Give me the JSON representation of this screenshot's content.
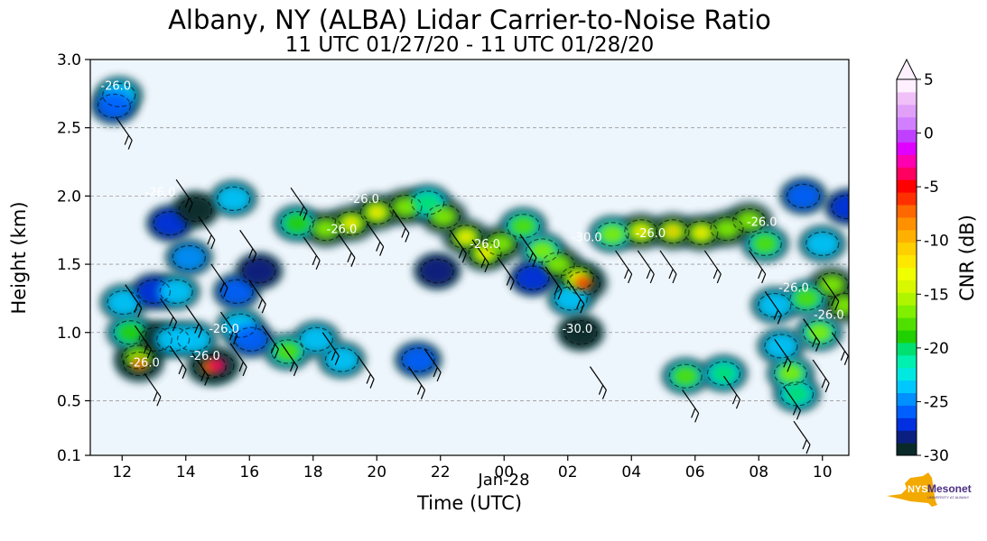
{
  "chart_data": {
    "type": "heatmap",
    "title": "Albany, NY (ALBA) Lidar Carrier-to-Noise Ratio",
    "subtitle": "11 UTC 01/27/20 - 11 UTC 01/28/20",
    "xlabel": "Time (UTC)",
    "ylabel": "Height (km)",
    "xlim": [
      "2020-01-27 11:00",
      "2020-01-28 10:50"
    ],
    "ylim": [
      0.1,
      3.0
    ],
    "x_ticks": [
      "12",
      "14",
      "16",
      "18",
      "20",
      "22",
      "00",
      "02",
      "04",
      "06",
      "08",
      "10"
    ],
    "x_tick_hours": [
      12,
      14,
      16,
      18,
      20,
      22,
      24,
      26,
      28,
      30,
      32,
      34
    ],
    "date_label": "Jan-28",
    "y_ticks": [
      "0.1",
      "0.5",
      "1.0",
      "1.5",
      "2.0",
      "2.5",
      "3.0"
    ],
    "y_tick_values": [
      0.1,
      0.5,
      1.0,
      1.5,
      2.0,
      2.5,
      3.0
    ],
    "grid": "horizontal-dashed",
    "background_color": "#eef6fd",
    "colorbar": {
      "label": "CNR (dB)",
      "min": -30,
      "max": 5,
      "tick_labels": [
        "5",
        "0",
        "-5",
        "-10",
        "-15",
        "-20",
        "-25",
        "-30"
      ],
      "tick_values": [
        5,
        0,
        -5,
        -10,
        -15,
        -20,
        -25,
        -30
      ],
      "extend": "max",
      "colors": [
        "#0a2a2a",
        "#0a1f80",
        "#0030e0",
        "#0060ff",
        "#0090ff",
        "#00c8ff",
        "#00e8e0",
        "#00f0b0",
        "#00e070",
        "#20d000",
        "#50e000",
        "#80ef00",
        "#b0f500",
        "#d8f800",
        "#f0ff00",
        "#ffe800",
        "#ffd000",
        "#ffb000",
        "#ff9000",
        "#ff6800",
        "#ff3000",
        "#ff0000",
        "#ff0060",
        "#ff00b0",
        "#e000ff",
        "#c040ff",
        "#d080ff",
        "#e0a0f8",
        "#f0c0f8",
        "#fff0ff"
      ]
    },
    "contour_labels": [
      "-26.0",
      "-26.0",
      "-26.0",
      "-26.0",
      "-26.0",
      "-26.0",
      "-30.0",
      "-26.0",
      "-26.0",
      "-30.0",
      "-26.0",
      "-26.0",
      "-26.0",
      "-26.0"
    ],
    "features": [
      {
        "t": 11.9,
        "z": 2.74,
        "cnr": -22
      },
      {
        "t": 11.75,
        "z": 2.66,
        "cnr": -26
      },
      {
        "t": 12.05,
        "z": 1.22,
        "cnr": -24
      },
      {
        "t": 12.25,
        "z": 1.0,
        "cnr": -19
      },
      {
        "t": 12.5,
        "z": 0.82,
        "cnr": -13
      },
      {
        "t": 12.55,
        "z": 0.77,
        "cnr": -7
      },
      {
        "t": 13.0,
        "z": 1.3,
        "cnr": -27
      },
      {
        "t": 13.05,
        "z": 0.95,
        "cnr": -29
      },
      {
        "t": 13.5,
        "z": 1.8,
        "cnr": -27
      },
      {
        "t": 13.7,
        "z": 1.3,
        "cnr": -24
      },
      {
        "t": 13.6,
        "z": 0.95,
        "cnr": -22
      },
      {
        "t": 14.1,
        "z": 1.55,
        "cnr": -25
      },
      {
        "t": 14.25,
        "z": 0.95,
        "cnr": -22
      },
      {
        "t": 14.75,
        "z": 0.75,
        "cnr": -7
      },
      {
        "t": 15.0,
        "z": 0.76,
        "cnr": -4
      },
      {
        "t": 14.3,
        "z": 1.9,
        "cnr": -29
      },
      {
        "t": 15.6,
        "z": 1.3,
        "cnr": -26
      },
      {
        "t": 15.7,
        "z": 1.05,
        "cnr": -22
      },
      {
        "t": 16.05,
        "z": 0.95,
        "cnr": -26
      },
      {
        "t": 16.3,
        "z": 1.45,
        "cnr": -28
      },
      {
        "t": 15.5,
        "z": 1.98,
        "cnr": -22
      },
      {
        "t": 17.2,
        "z": 0.86,
        "cnr": -18
      },
      {
        "t": 18.1,
        "z": 0.95,
        "cnr": -22
      },
      {
        "t": 18.9,
        "z": 0.8,
        "cnr": -24
      },
      {
        "t": 17.5,
        "z": 1.8,
        "cnr": -19
      },
      {
        "t": 18.4,
        "z": 1.76,
        "cnr": -14
      },
      {
        "t": 19.2,
        "z": 1.8,
        "cnr": -12
      },
      {
        "t": 20.0,
        "z": 1.88,
        "cnr": -12
      },
      {
        "t": 20.9,
        "z": 1.92,
        "cnr": -14
      },
      {
        "t": 21.6,
        "z": 1.95,
        "cnr": -20
      },
      {
        "t": 22.1,
        "z": 1.85,
        "cnr": -14
      },
      {
        "t": 22.8,
        "z": 1.7,
        "cnr": -12
      },
      {
        "t": 23.4,
        "z": 1.58,
        "cnr": -12
      },
      {
        "t": 23.9,
        "z": 1.65,
        "cnr": -14
      },
      {
        "t": 24.6,
        "z": 1.78,
        "cnr": -18
      },
      {
        "t": 25.2,
        "z": 1.6,
        "cnr": -16
      },
      {
        "t": 25.7,
        "z": 1.5,
        "cnr": -14
      },
      {
        "t": 26.3,
        "z": 1.4,
        "cnr": -12
      },
      {
        "t": 26.5,
        "z": 1.36,
        "cnr": -6
      },
      {
        "t": 26.4,
        "z": 1.0,
        "cnr": -29
      },
      {
        "t": 26.1,
        "z": 1.25,
        "cnr": -24
      },
      {
        "t": 21.3,
        "z": 0.8,
        "cnr": -26
      },
      {
        "t": 24.9,
        "z": 1.4,
        "cnr": -27
      },
      {
        "t": 21.9,
        "z": 1.45,
        "cnr": -28
      },
      {
        "t": 27.4,
        "z": 1.72,
        "cnr": -16
      },
      {
        "t": 28.3,
        "z": 1.74,
        "cnr": -12
      },
      {
        "t": 29.3,
        "z": 1.74,
        "cnr": -11
      },
      {
        "t": 30.2,
        "z": 1.73,
        "cnr": -12
      },
      {
        "t": 31.0,
        "z": 1.76,
        "cnr": -14
      },
      {
        "t": 31.7,
        "z": 1.82,
        "cnr": -14
      },
      {
        "t": 32.2,
        "z": 1.65,
        "cnr": -18
      },
      {
        "t": 32.5,
        "z": 1.2,
        "cnr": -24
      },
      {
        "t": 32.7,
        "z": 0.9,
        "cnr": -22
      },
      {
        "t": 33.0,
        "z": 0.7,
        "cnr": -16
      },
      {
        "t": 33.2,
        "z": 0.55,
        "cnr": -20
      },
      {
        "t": 33.5,
        "z": 1.25,
        "cnr": -18
      },
      {
        "t": 33.9,
        "z": 1.0,
        "cnr": -16
      },
      {
        "t": 34.3,
        "z": 1.35,
        "cnr": -14
      },
      {
        "t": 34.7,
        "z": 1.2,
        "cnr": -13
      },
      {
        "t": 33.4,
        "z": 2.0,
        "cnr": -26
      },
      {
        "t": 34.0,
        "z": 1.65,
        "cnr": -24
      },
      {
        "t": 29.7,
        "z": 0.68,
        "cnr": -18
      },
      {
        "t": 30.9,
        "z": 0.7,
        "cnr": -20
      },
      {
        "t": 34.8,
        "z": 1.92,
        "cnr": -27
      }
    ],
    "wind_barbs": [
      {
        "t": 11.8,
        "z": 2.58
      },
      {
        "t": 12.1,
        "z": 1.35
      },
      {
        "t": 12.4,
        "z": 1.05
      },
      {
        "t": 12.7,
        "z": 0.7
      },
      {
        "t": 13.2,
        "z": 1.25
      },
      {
        "t": 13.5,
        "z": 0.9
      },
      {
        "t": 13.7,
        "z": 2.12
      },
      {
        "t": 14.0,
        "z": 1.2
      },
      {
        "t": 14.2,
        "z": 0.85
      },
      {
        "t": 14.4,
        "z": 1.85
      },
      {
        "t": 14.8,
        "z": 1.5
      },
      {
        "t": 15.1,
        "z": 1.15
      },
      {
        "t": 15.4,
        "z": 0.92
      },
      {
        "t": 15.7,
        "z": 1.75
      },
      {
        "t": 16.0,
        "z": 1.38
      },
      {
        "t": 16.4,
        "z": 1.05
      },
      {
        "t": 17.0,
        "z": 0.92
      },
      {
        "t": 17.3,
        "z": 2.06
      },
      {
        "t": 17.7,
        "z": 1.7
      },
      {
        "t": 18.3,
        "z": 1.0
      },
      {
        "t": 18.8,
        "z": 1.72
      },
      {
        "t": 19.4,
        "z": 0.83
      },
      {
        "t": 19.7,
        "z": 1.8
      },
      {
        "t": 20.5,
        "z": 1.9
      },
      {
        "t": 21.0,
        "z": 0.75
      },
      {
        "t": 21.5,
        "z": 0.88
      },
      {
        "t": 22.3,
        "z": 1.75
      },
      {
        "t": 23.0,
        "z": 1.68
      },
      {
        "t": 23.8,
        "z": 1.55
      },
      {
        "t": 24.5,
        "z": 1.72
      },
      {
        "t": 25.3,
        "z": 1.48
      },
      {
        "t": 26.0,
        "z": 1.38
      },
      {
        "t": 26.7,
        "z": 0.75
      },
      {
        "t": 27.5,
        "z": 1.6
      },
      {
        "t": 28.2,
        "z": 1.6
      },
      {
        "t": 28.9,
        "z": 1.6
      },
      {
        "t": 29.6,
        "z": 0.58
      },
      {
        "t": 30.3,
        "z": 1.6
      },
      {
        "t": 30.9,
        "z": 0.68
      },
      {
        "t": 31.7,
        "z": 1.6
      },
      {
        "t": 32.2,
        "z": 1.3
      },
      {
        "t": 32.5,
        "z": 0.95
      },
      {
        "t": 32.8,
        "z": 0.6
      },
      {
        "t": 33.1,
        "z": 0.35
      },
      {
        "t": 33.4,
        "z": 1.1
      },
      {
        "t": 33.7,
        "z": 0.8
      },
      {
        "t": 34.0,
        "z": 1.4
      },
      {
        "t": 34.3,
        "z": 1.0
      }
    ]
  },
  "logo": {
    "brand": "NYS",
    "name": "Mesonet",
    "subtext": "UNIVERSITY AT ALBANY",
    "colors": {
      "state": "#f2a900",
      "text": "#4b2e83"
    }
  }
}
